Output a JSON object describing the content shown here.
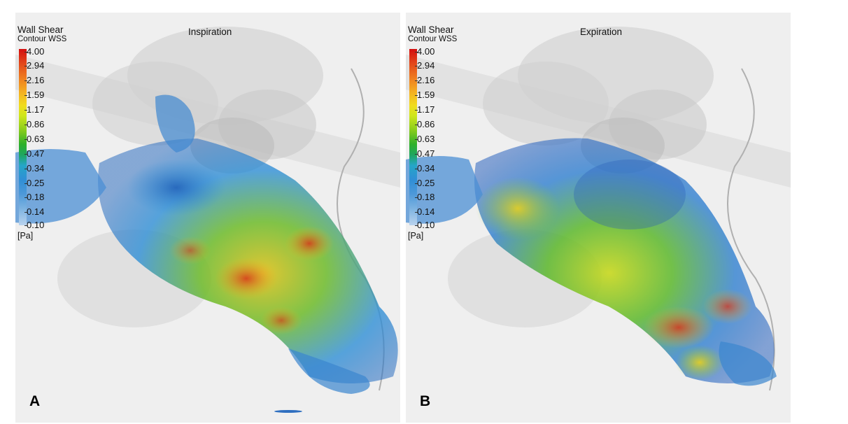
{
  "legend": {
    "title": "Wall Shear",
    "subtitle": "Contour WSS",
    "ticks": [
      "4.00",
      "2.94",
      "2.16",
      "1.59",
      "1.17",
      "0.86",
      "0.63",
      "0.47",
      "0.34",
      "0.25",
      "0.18",
      "0.14",
      "0.10"
    ],
    "unit": "[Pa]"
  },
  "panels": [
    {
      "letter": "A",
      "title": "Inspiration"
    },
    {
      "letter": "B",
      "title": "Expiration"
    }
  ],
  "colors": {
    "max": "#d40f0f",
    "mid": "#f1dc1e",
    "low": "#2fb02a",
    "min": "#7ab1e0",
    "background": "#efefef"
  }
}
